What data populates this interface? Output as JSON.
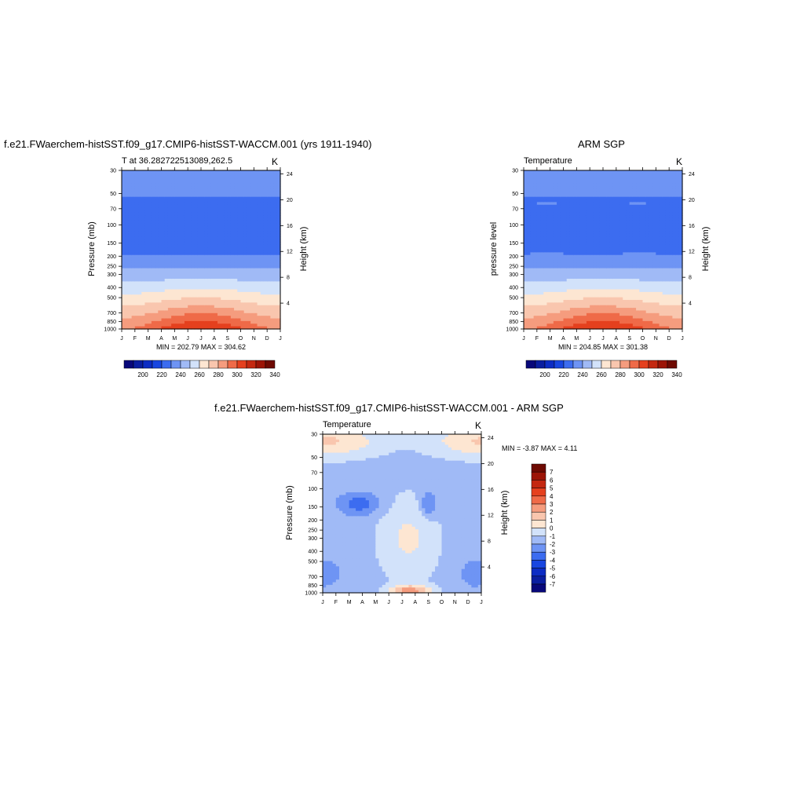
{
  "page": {
    "main_title_left": "f.e21.FWaerchem-histSST.f09_g17.CMIP6-histSST-WACCM.001 (yrs 1911-1940)",
    "main_title_right": "ARM SGP",
    "main_title_bottom": "f.e21.FWaerchem-histSST.f09_g17.CMIP6-histSST-WACCM.001 - ARM SGP"
  },
  "chart_data": [
    {
      "type": "heatmap",
      "left_string": "T at 36.282722513089,262.5",
      "right_string": "K",
      "xlabel": "",
      "ylabel": "Pressure (mb)",
      "ylabel_right": "Height (km)",
      "months": [
        "J",
        "F",
        "M",
        "A",
        "M",
        "J",
        "J",
        "A",
        "S",
        "O",
        "N",
        "D",
        "J"
      ],
      "pressure_ticks": [
        "30",
        "50",
        "70",
        "100",
        "150",
        "200",
        "250",
        "300",
        "400",
        "500",
        "700",
        "850",
        "1000"
      ],
      "height_ticks": [
        "24",
        "20",
        "16",
        "12",
        "8",
        "4"
      ],
      "stats": "MIN = 202.79 MAX = 304.62",
      "colorbar_labels": [
        "200",
        "220",
        "240",
        "260",
        "280",
        "300",
        "320",
        "340"
      ],
      "colorbar_orientation": "horizontal",
      "levels": [
        180,
        190,
        200,
        210,
        220,
        230,
        240,
        250,
        260,
        270,
        280,
        290,
        300,
        310,
        320,
        330
      ],
      "ylim_mb": [
        30,
        1000
      ]
    },
    {
      "type": "heatmap",
      "left_string": "Temperature",
      "right_string": "K",
      "xlabel": "",
      "ylabel": "pressure level",
      "ylabel_right": "Height (km)",
      "months": [
        "J",
        "F",
        "M",
        "A",
        "M",
        "J",
        "J",
        "A",
        "S",
        "O",
        "N",
        "D",
        "J"
      ],
      "pressure_ticks": [
        "30",
        "50",
        "70",
        "100",
        "150",
        "200",
        "250",
        "300",
        "400",
        "500",
        "700",
        "850",
        "1000"
      ],
      "height_ticks": [
        "24",
        "20",
        "16",
        "12",
        "8",
        "4"
      ],
      "stats": "MIN = 204.85 MAX = 301.38",
      "colorbar_labels": [
        "200",
        "220",
        "240",
        "260",
        "280",
        "300",
        "320",
        "340"
      ],
      "colorbar_orientation": "horizontal",
      "levels": [
        180,
        190,
        200,
        210,
        220,
        230,
        240,
        250,
        260,
        270,
        280,
        290,
        300,
        310,
        320,
        330
      ],
      "ylim_mb": [
        30,
        1000
      ]
    },
    {
      "type": "heatmap",
      "left_string": "Temperature",
      "right_string": "K",
      "xlabel": "",
      "ylabel": "Pressure (mb)",
      "ylabel_right": "Height (km)",
      "months": [
        "J",
        "F",
        "M",
        "A",
        "M",
        "J",
        "J",
        "A",
        "S",
        "O",
        "N",
        "D",
        "J"
      ],
      "pressure_ticks": [
        "30",
        "50",
        "70",
        "100",
        "150",
        "200",
        "250",
        "300",
        "400",
        "500",
        "700",
        "850",
        "1000"
      ],
      "height_ticks": [
        "24",
        "20",
        "16",
        "12",
        "8",
        "4"
      ],
      "stats": "MIN =  -3.87 MAX =   4.11",
      "colorbar_labels": [
        "7",
        "6",
        "5",
        "4",
        "3",
        "2",
        "1",
        "0",
        "-1",
        "-2",
        "-3",
        "-4",
        "-5",
        "-6",
        "-7"
      ],
      "colorbar_orientation": "vertical",
      "ylim_mb": [
        30,
        1000
      ]
    }
  ],
  "colors": {
    "temp_palette": [
      "#08087a",
      "#0a1ea0",
      "#0c2cc4",
      "#1846e0",
      "#3c6cf0",
      "#6e94f4",
      "#a0baf6",
      "#d2e2fa",
      "#fde6d2",
      "#f9c6ae",
      "#f59c7e",
      "#ef6a48",
      "#e5401e",
      "#c42810",
      "#9c1406",
      "#6e0a02"
    ],
    "diff_palette": [
      "#6e0a02",
      "#9c1406",
      "#c42810",
      "#e5401e",
      "#ef6a48",
      "#f59c7e",
      "#f9c6ae",
      "#fde6d2",
      "#d2e2fa",
      "#a0baf6",
      "#6e94f4",
      "#3c6cf0",
      "#1846e0",
      "#0c2cc4",
      "#0a1ea0",
      "#08087a"
    ]
  }
}
